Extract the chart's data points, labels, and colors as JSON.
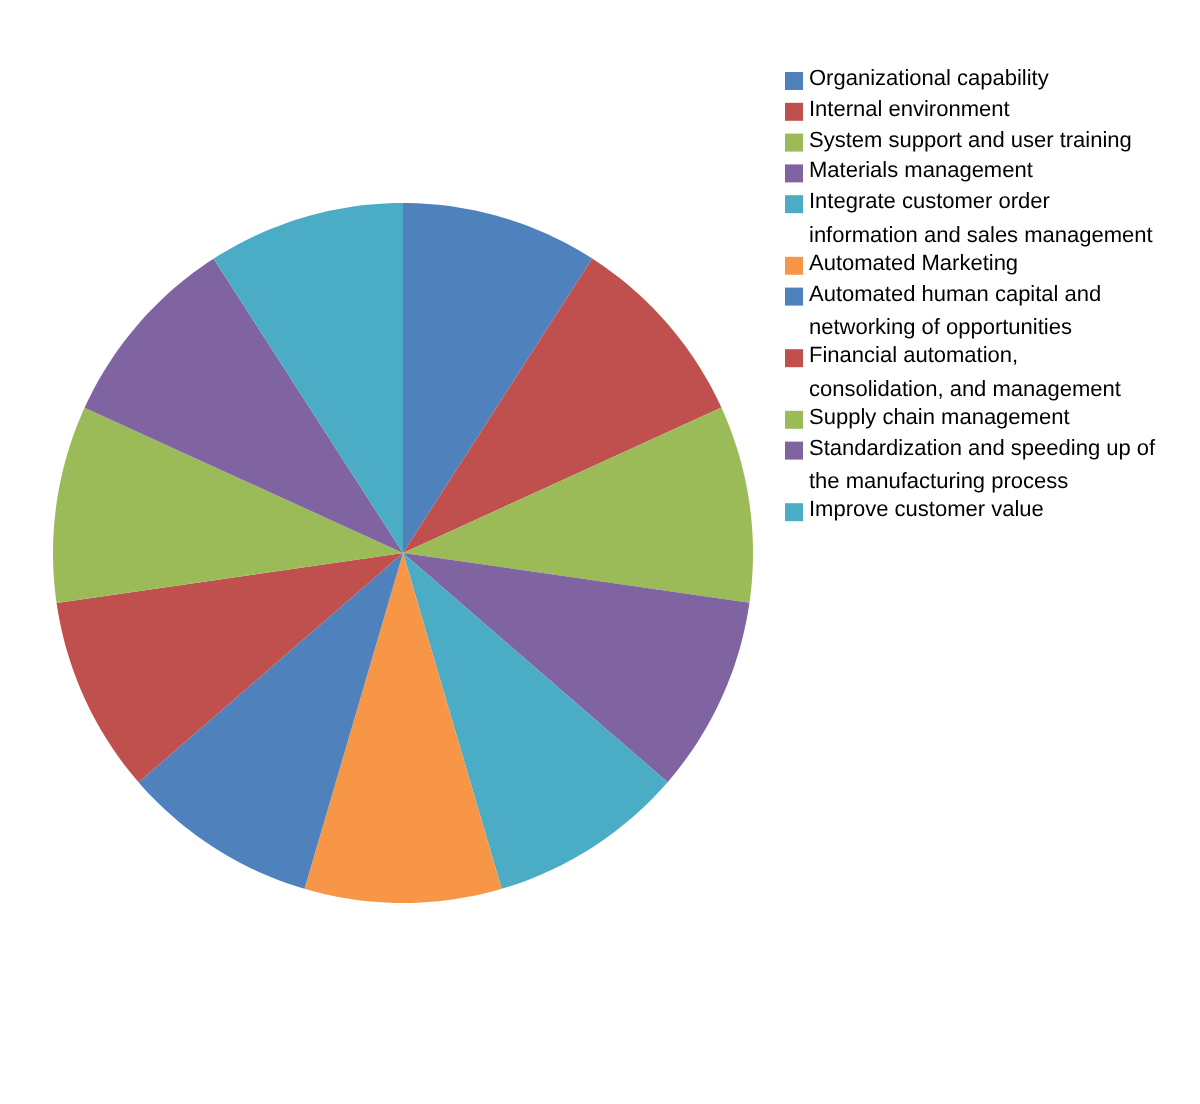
{
  "chart_data": {
    "type": "pie",
    "categories": [
      "Organizational capability",
      "Internal environment",
      "System support and user training",
      "Materials management",
      "Integrate customer order information and sales management",
      "Automated Marketing",
      "Automated human capital and networking of opportunities",
      "Financial automation, consolidation, and management",
      "Supply chain management",
      "Standardization and speeding up of the manufacturing process",
      "Improve customer value"
    ],
    "values": [
      9.09,
      9.09,
      9.09,
      9.09,
      9.09,
      9.09,
      9.09,
      9.09,
      9.09,
      9.09,
      9.1
    ],
    "colors": [
      "#4f81bd",
      "#c0504d",
      "#9bbb59",
      "#8064a2",
      "#4bacc6",
      "#f79646",
      "#4f81bd",
      "#c0504d",
      "#9bbb59",
      "#8064a2",
      "#4bacc6"
    ],
    "legend": "top right"
  }
}
